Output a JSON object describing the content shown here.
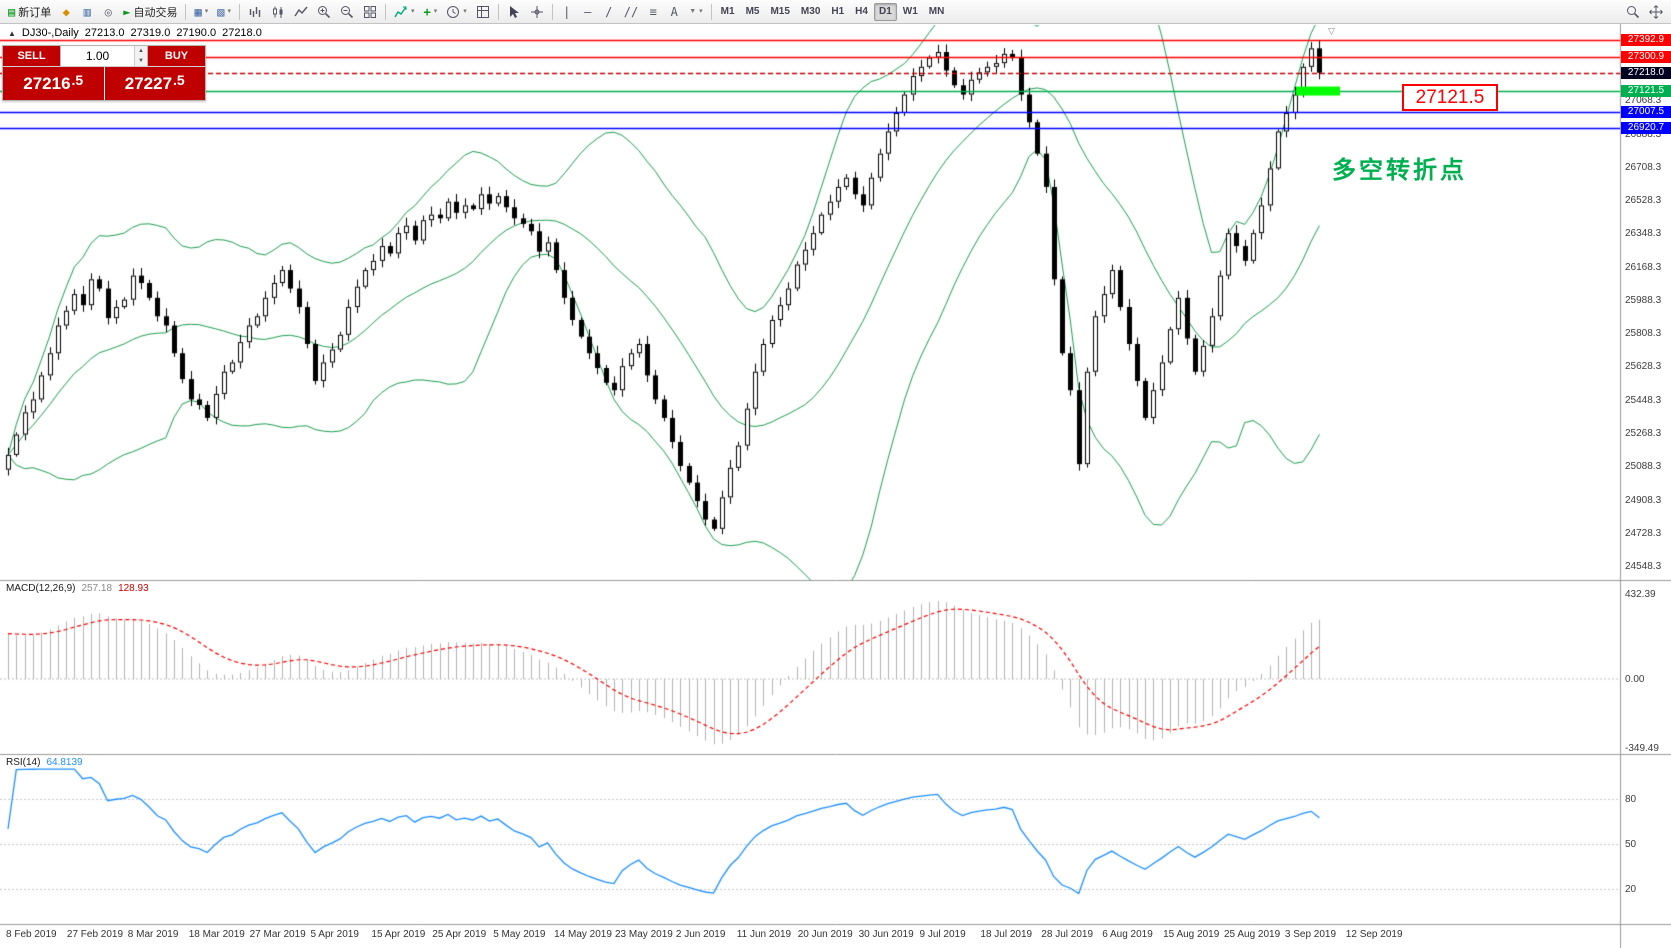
{
  "toolbar": {
    "new_order": "新订单",
    "autotrade": "自动交易",
    "timeframes": [
      "M1",
      "M5",
      "M15",
      "M30",
      "H1",
      "H4",
      "D1",
      "W1",
      "MN"
    ],
    "active_timeframe": "D1",
    "icons": {
      "new_order": "▤",
      "market_watch": "◆",
      "data_window": "▥",
      "navigator": "◎",
      "autotrade_play": "►",
      "new_chart": "▦",
      "profiles": "▧",
      "caret": "▾",
      "add_indicator": "+",
      "vline": "|",
      "hline": "—",
      "trendline": "/",
      "channel": "//",
      "fibonacci": "≡",
      "text_tool": "A",
      "shapes": "▼",
      "shift_marker": "▽"
    }
  },
  "chart_header": {
    "symbol": "DJ30-,Daily",
    "open": "27213.0",
    "high": "27319.0",
    "low": "27190.0",
    "close": "27218.0"
  },
  "one_click": {
    "sell_label": "SELL",
    "buy_label": "BUY",
    "volume": "1.00",
    "spin_up": "▲",
    "spin_down": "▼",
    "sell_price_main": "27216",
    "sell_price_frac": ".5",
    "buy_price_main": "27227",
    "buy_price_frac": ".5"
  },
  "annotation": {
    "turning_point": "多空转折点",
    "price_box": "27121.5"
  },
  "colors": {
    "bollinger": "#1d9e4f",
    "candle_up": "#ffffff",
    "candle_down": "#000000",
    "candle_outline": "#000000",
    "macd_hist": "#b4b4b4",
    "macd_signal": "#ff0000",
    "rsi": "#1e90ff",
    "level_red": "#ff0000",
    "level_green": "#00b050",
    "level_blue": "#0000ff",
    "current_label_bg": "#000020",
    "highlight": "#00ff00",
    "annotation_green": "#00b050"
  },
  "chart_data": {
    "type": "candlestick",
    "symbol": "DJ30-",
    "timeframe": "Daily",
    "title": "DJ30-,Daily",
    "last_ohlc": {
      "open": 27213.0,
      "high": 27319.0,
      "low": 27190.0,
      "close": 27218.0
    },
    "ylim": [
      24500,
      27460
    ],
    "price_axis_ticks": [
      "27068.3",
      "26888.3",
      "26708.3",
      "26528.3",
      "26348.3",
      "26168.3",
      "25988.3",
      "25808.3",
      "25628.3",
      "25448.3",
      "25268.3",
      "25088.3",
      "24908.3",
      "24728.3",
      "24548.3"
    ],
    "levels": [
      {
        "price": 27392.9,
        "label": "27392.9",
        "color": "#ff0000",
        "line": "solid"
      },
      {
        "price": 27300.9,
        "label": "27300.9",
        "color": "#ff0000",
        "line": "solid"
      },
      {
        "price": 27218.0,
        "label": "27218.0",
        "color": "#000020",
        "line": "dashed",
        "line_color": "#cc0000"
      },
      {
        "price": 27121.5,
        "label": "27121.5",
        "color": "#00b050",
        "line": "solid"
      },
      {
        "price": 27007.5,
        "label": "27007.5",
        "color": "#0000ff",
        "line": "solid"
      },
      {
        "price": 26920.7,
        "label": "26920.7",
        "color": "#0000ff",
        "line": "solid"
      }
    ],
    "highlight": {
      "price": 27121.5,
      "color": "#00ff00"
    },
    "closes": [
      25150,
      25260,
      25380,
      25450,
      25580,
      25700,
      25850,
      25930,
      26020,
      25960,
      26100,
      26050,
      25890,
      25950,
      25990,
      26120,
      26080,
      26000,
      25900,
      25850,
      25700,
      25560,
      25450,
      25420,
      25350,
      25480,
      25600,
      25650,
      25760,
      25850,
      25900,
      26000,
      26080,
      26150,
      26050,
      25950,
      25750,
      25550,
      25650,
      25720,
      25800,
      25950,
      26060,
      26150,
      26200,
      26280,
      26240,
      26350,
      26390,
      26310,
      26420,
      26450,
      26430,
      26520,
      26460,
      26500,
      26480,
      26560,
      26510,
      26550,
      26490,
      26430,
      26400,
      26360,
      26250,
      26300,
      26150,
      26000,
      25880,
      25790,
      25700,
      25620,
      25540,
      25500,
      25630,
      25700,
      25750,
      25580,
      25450,
      25350,
      25220,
      25090,
      25000,
      24900,
      24800,
      24750,
      24920,
      25080,
      25200,
      25400,
      25600,
      25750,
      25880,
      25960,
      26050,
      26180,
      26260,
      26350,
      26450,
      26520,
      26600,
      26650,
      26560,
      26500,
      26650,
      26780,
      26900,
      27000,
      27100,
      27200,
      27250,
      27300,
      27330,
      27230,
      27150,
      27100,
      27180,
      27220,
      27250,
      27270,
      27320,
      27300,
      27100,
      26950,
      26780,
      26600,
      26100,
      25700,
      25500,
      25100,
      25600,
      25900,
      26020,
      26150,
      25950,
      25750,
      25550,
      25350,
      25500,
      25650,
      25830,
      26000,
      25780,
      25600,
      25740,
      25900,
      26120,
      26350,
      26280,
      26200,
      26350,
      26500,
      26700,
      26900,
      27000,
      27100,
      27250,
      27350,
      27218
    ],
    "overlays": {
      "bollinger_period": 20,
      "bollinger_deviation": 2
    },
    "macd": {
      "name": "MACD(12,26,9)",
      "fast": 12,
      "slow": 26,
      "signal": 9,
      "value_main": "257.18",
      "value_signal": "128.93",
      "axis_labels": [
        "432.39",
        "0.00",
        "-349.49"
      ]
    },
    "rsi": {
      "name": "RSI(14)",
      "period": 14,
      "value": "64.8139",
      "levels": [
        "80",
        "50",
        "20"
      ]
    },
    "x_labels": [
      "8 Feb 2019",
      "27 Feb 2019",
      "8 Mar 2019",
      "18 Mar 2019",
      "27 Mar 2019",
      "5 Apr 2019",
      "15 Apr 2019",
      "25 Apr 2019",
      "5 May 2019",
      "14 May 2019",
      "23 May 2019",
      "2 Jun 2019",
      "11 Jun 2019",
      "20 Jun 2019",
      "30 Jun 2019",
      "9 Jul 2019",
      "18 Jul 2019",
      "28 Jul 2019",
      "6 Aug 2019",
      "15 Aug 2019",
      "25 Aug 2019",
      "3 Sep 2019",
      "12 Sep 2019"
    ]
  }
}
